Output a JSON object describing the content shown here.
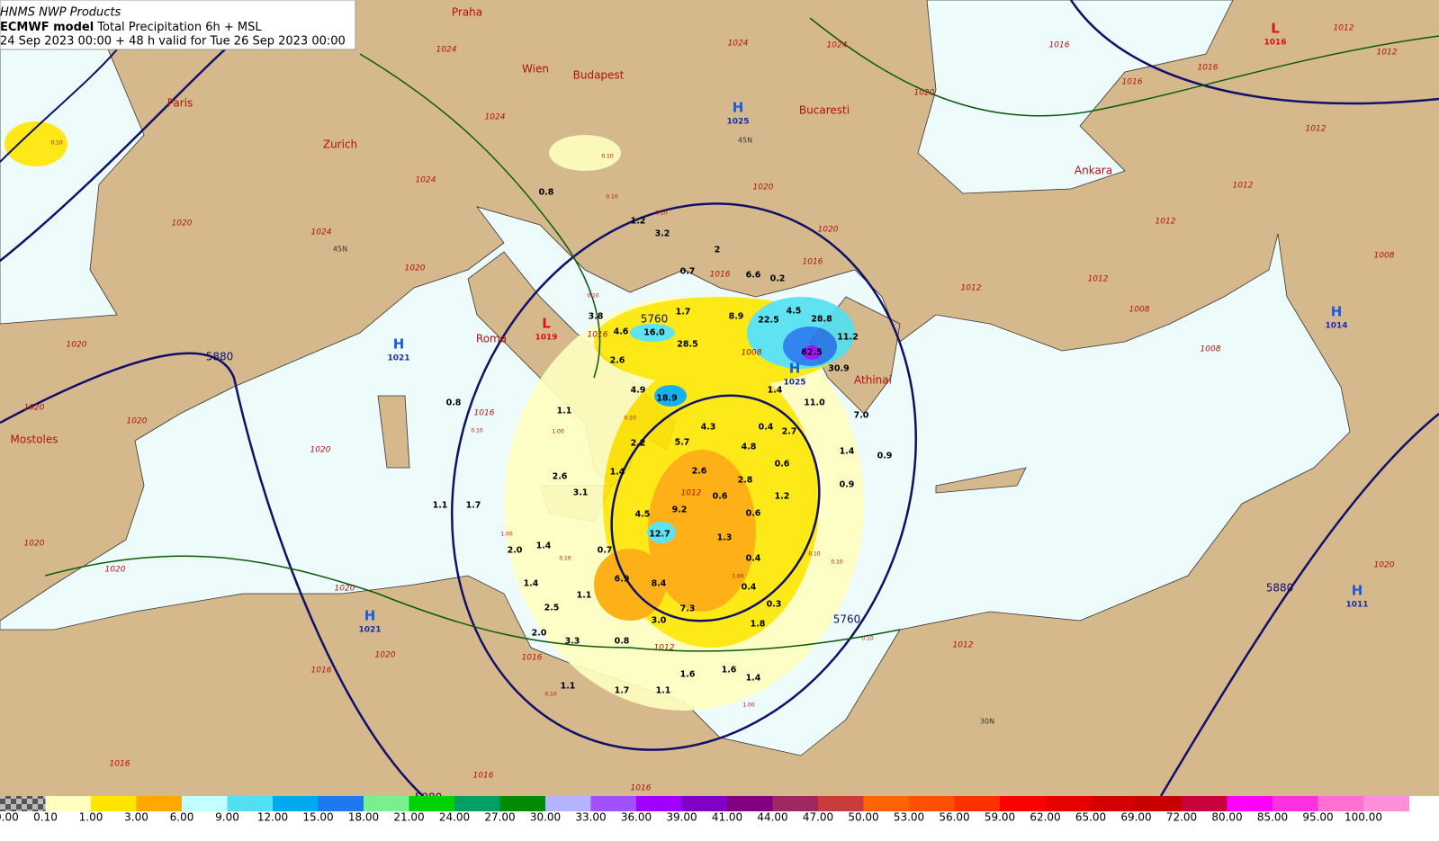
{
  "header": {
    "line1": "HNMS NWP Products",
    "model": "ECMWF model",
    "product": "Total Precipitation 6h + MSL",
    "line3": "24 Sep 2023 00:00 + 48 h valid for Tue 26 Sep 2023 00:00"
  },
  "cities": [
    "Praha",
    "Wien",
    "Budapest",
    "Paris",
    "Zurich",
    "Bucaresti",
    "Ankara",
    "Roma",
    "Athinai",
    "Mostoles"
  ],
  "pressure_centers": [
    {
      "symbol": "H",
      "value": "1025"
    },
    {
      "symbol": "L",
      "value": "1016"
    },
    {
      "symbol": "L",
      "value": "1019"
    },
    {
      "symbol": "H",
      "value": "1021"
    },
    {
      "symbol": "H",
      "value": "1025"
    },
    {
      "symbol": "H",
      "value": "1014"
    },
    {
      "symbol": "H",
      "value": "1021"
    },
    {
      "symbol": "H",
      "value": "1011"
    }
  ],
  "height_labels": [
    "5880",
    "5760",
    "5760",
    "5880",
    "5880"
  ],
  "isobar_labels": [
    "1024",
    "1024",
    "1024",
    "1024",
    "1024",
    "1024",
    "1020",
    "1020",
    "1020",
    "1020",
    "1020",
    "1020",
    "1020",
    "1020",
    "1020",
    "1020",
    "1016",
    "1016",
    "1016",
    "1016",
    "1016",
    "1016",
    "1016",
    "1016",
    "1016",
    "1016",
    "1016",
    "1016",
    "1012",
    "1012",
    "1012",
    "1012",
    "1012",
    "1012",
    "1012",
    "1012",
    "1012",
    "1012",
    "1008",
    "1008",
    "1008",
    "1008",
    "1020",
    "1020",
    "1020",
    "1020"
  ],
  "precip_labels": [
    "0.8",
    "1.2",
    "3.2",
    "2",
    "0.7",
    "6.6",
    "0.2",
    "1.7",
    "3.8",
    "4.6",
    "16.0",
    "28.5",
    "8.9",
    "22.5",
    "4.5",
    "28.8",
    "11.2",
    "62.5",
    "30.9",
    "2.6",
    "4.9",
    "18.9",
    "1.4",
    "11.0",
    "7.0",
    "1.1",
    "0.8",
    "4.3",
    "0.4",
    "2.7",
    "5.7",
    "4.8",
    "1.4",
    "0.9",
    "0.6",
    "2.2",
    "1.4",
    "2.6",
    "2.8",
    "0.9",
    "2.6",
    "3.1",
    "0.6",
    "1.2",
    "1.1",
    "1.7",
    "9.2",
    "4.5",
    "0.6",
    "12.7",
    "1.3",
    "2.0",
    "1.4",
    "0.7",
    "0.4",
    "6.9",
    "8.4",
    "1.4",
    "1.1",
    "0.4",
    "0.3",
    "2.5",
    "7.3",
    "3.0",
    "1.8",
    "2.0",
    "3.3",
    "0.8",
    "1.6",
    "1.6",
    "1.4",
    "1.1",
    "1.7",
    "1.1"
  ],
  "small_labels": [
    "0.10",
    "0.10",
    "0.10",
    "0.10",
    "1.00",
    "0.10",
    "0.10",
    "1.00",
    "0.10",
    "0.10",
    "1.00",
    "0.10",
    "0.10",
    "1.00",
    "0.10",
    "0.10"
  ],
  "grid_labels": [
    "45N",
    "45N",
    "30N"
  ],
  "legend": {
    "labels": [
      "0.00",
      "0.10",
      "1.00",
      "3.00",
      "6.00",
      "9.00",
      "12.00",
      "15.00",
      "18.00",
      "21.00",
      "24.00",
      "27.00",
      "30.00",
      "33.00",
      "36.00",
      "39.00",
      "41.00",
      "44.00",
      "47.00",
      "50.00",
      "53.00",
      "56.00",
      "59.00",
      "62.00",
      "65.00",
      "69.00",
      "72.00",
      "80.00",
      "85.00",
      "95.00",
      "100.00"
    ],
    "colors": [
      "#ffffc0",
      "#ffe600",
      "#ffa800",
      "#c4ffff",
      "#50e0f0",
      "#00a8f0",
      "#1e78f0",
      "#78f090",
      "#00d200",
      "#00a064",
      "#008c00",
      "#b4b4ff",
      "#a050ff",
      "#a000ff",
      "#8000c8",
      "#800080",
      "#a02860",
      "#c83c3c",
      "#ff6400",
      "#ff5000",
      "#ff3000",
      "#ff0000",
      "#e60000",
      "#d20000",
      "#c80000",
      "#c8003c",
      "#ff00ff",
      "#ff30e0",
      "#ff70d0",
      "#ff90d8"
    ]
  }
}
